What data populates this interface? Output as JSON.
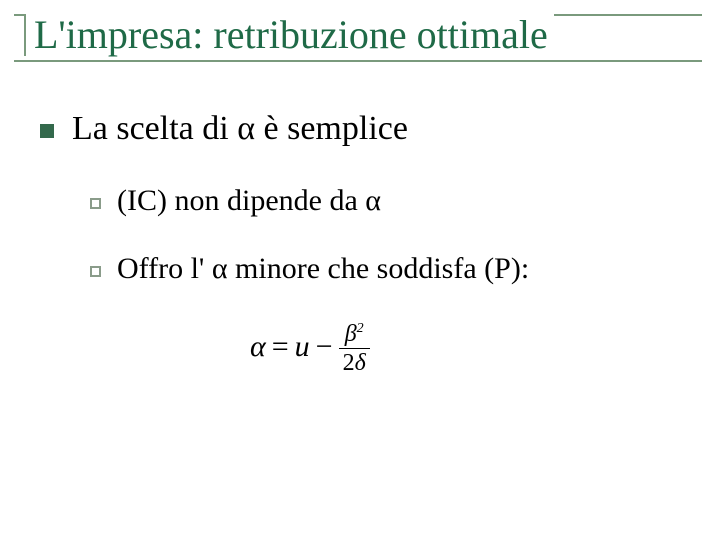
{
  "colors": {
    "title_text": "#1f6a47",
    "title_rule": "#7a9a7d",
    "body_text": "#000000",
    "lvl1_bullet_fill": "#33694c",
    "lvl2_bullet_border": "#8a9c8a",
    "background": "#ffffff"
  },
  "fonts": {
    "title_family": "Times New Roman",
    "title_size_pt": 40,
    "body_family": "Times New Roman",
    "lvl1_size_pt": 34,
    "lvl2_size_pt": 30,
    "formula_size_pt": 30
  },
  "title": "L'impresa: retribuzione ottimale",
  "bullets": {
    "lvl1": {
      "text": "La scelta di α è semplice"
    },
    "lvl2": [
      {
        "text": "(IC) non dipende da α"
      },
      {
        "text": "Offro l' α minore che soddisfa (P):"
      }
    ]
  },
  "formula": {
    "lhs": "α",
    "eq": "=",
    "term1": "u",
    "minus": "−",
    "frac_num": "β",
    "frac_num_sup": "2",
    "frac_den_coeff": "2",
    "frac_den_var": "δ"
  }
}
